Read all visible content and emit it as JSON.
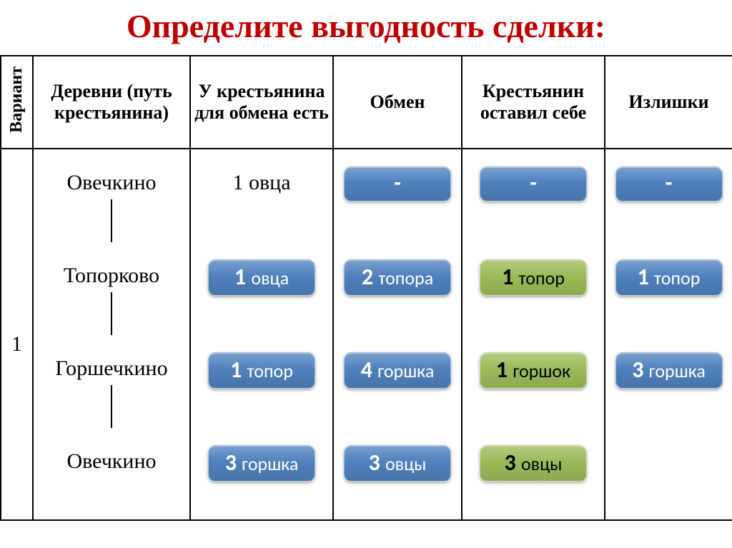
{
  "colors": {
    "title": "#c00000",
    "blue": "#4f81bd",
    "green": "#9bbb59"
  },
  "title": "Определите выгодность сделки:",
  "headers": {
    "variant": "Вариант",
    "village": "Деревни (путь крестьянина)",
    "has": "У крестья­нина для обмена есть",
    "exchange": "Обмен",
    "kept": "Крестья­нин оста­вил себе",
    "surplus": "Излиш­ки"
  },
  "variant_number": "1",
  "villages": [
    "Овечкино",
    "Топорково",
    "Горшечкино",
    "Овечкино"
  ],
  "row_tops": [
    30,
    160,
    290,
    420
  ],
  "conn_segments": [
    [
      70,
      60
    ],
    [
      200,
      60
    ],
    [
      330,
      60
    ]
  ],
  "plain_has": "1 овца",
  "chips": {
    "has": [
      {
        "row": 1,
        "qty": "1",
        "item": "овца",
        "style": "blue"
      },
      {
        "row": 2,
        "qty": "1",
        "item": "топор",
        "style": "blue"
      },
      {
        "row": 3,
        "qty": "3",
        "item": "горшка",
        "style": "blue"
      }
    ],
    "exchange": [
      {
        "row": 0,
        "dash": "-",
        "style": "blue"
      },
      {
        "row": 1,
        "qty": "2",
        "item": "топора",
        "style": "blue"
      },
      {
        "row": 2,
        "qty": "4",
        "item": "горшка",
        "style": "blue"
      },
      {
        "row": 3,
        "qty": "3",
        "item": "овцы",
        "style": "blue"
      }
    ],
    "kept": [
      {
        "row": 0,
        "dash": "-",
        "style": "blue"
      },
      {
        "row": 1,
        "qty": "1",
        "item": "топор",
        "style": "green"
      },
      {
        "row": 2,
        "qty": "1",
        "item": "горшок",
        "style": "green"
      },
      {
        "row": 3,
        "qty": "3",
        "item": "овцы",
        "style": "green"
      }
    ],
    "surplus": [
      {
        "row": 0,
        "dash": "-",
        "style": "blue"
      },
      {
        "row": 1,
        "qty": "1",
        "item": "топор",
        "style": "blue"
      },
      {
        "row": 2,
        "qty": "3",
        "item": "горшка",
        "style": "blue"
      }
    ]
  }
}
